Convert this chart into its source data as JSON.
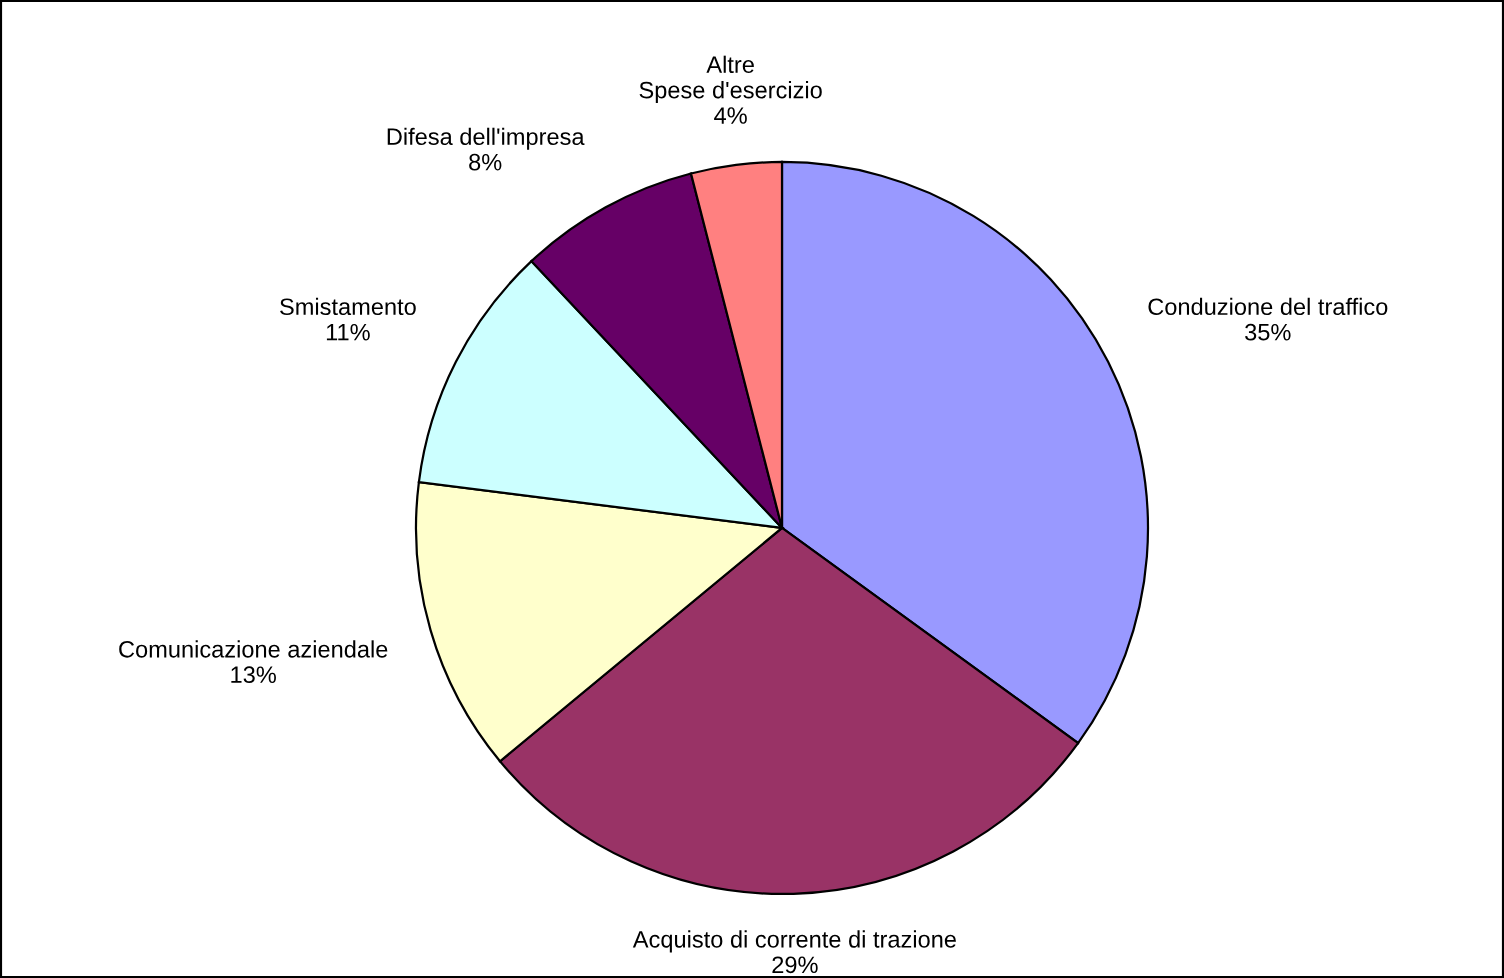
{
  "chart_data": {
    "type": "pie",
    "categories": [
      "Conduzione del traffico",
      "Acquisto di corrente di trazione",
      "Comunicazione aziendale",
      "Smistamento",
      "Difesa dell'impresa",
      "Altre\nSpese d'esercizio"
    ],
    "values": [
      35,
      29,
      13,
      11,
      8,
      4
    ],
    "value_labels": [
      "35%",
      "29%",
      "13%",
      "11%",
      "8%",
      "4%"
    ],
    "colors": [
      "#9999ff",
      "#993366",
      "#ffffcc",
      "#ccffff",
      "#660066",
      "#ff8080"
    ],
    "legend": false
  }
}
